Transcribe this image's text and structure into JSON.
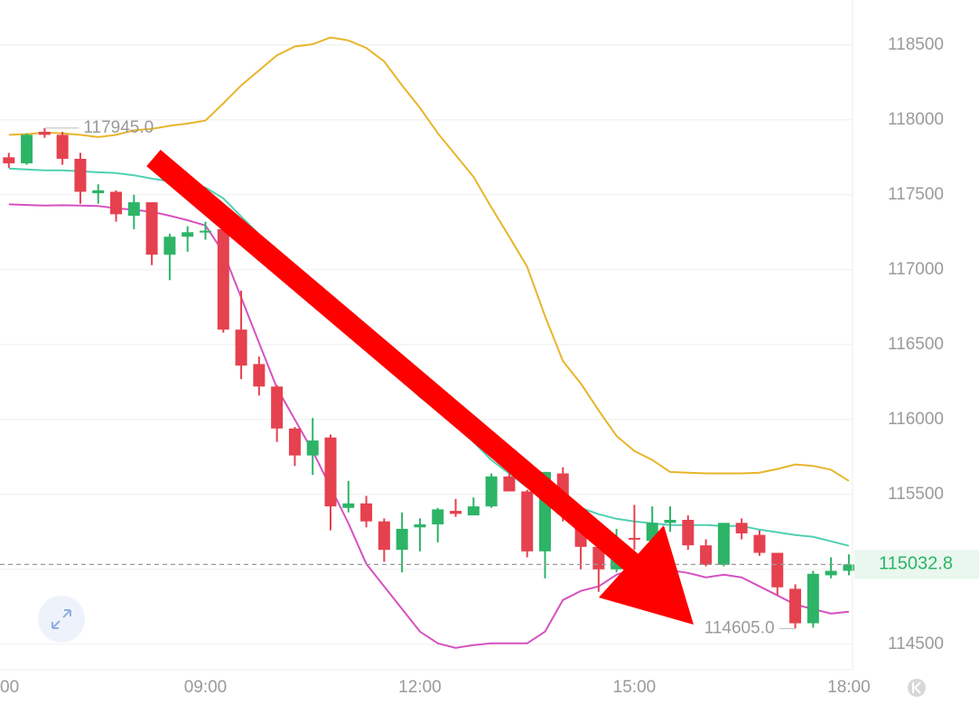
{
  "chart_data": {
    "type": "candlestick",
    "categories": [
      "00",
      null,
      null,
      null,
      null,
      null,
      null,
      null,
      null,
      null,
      null,
      null,
      "09:00",
      null,
      null,
      null,
      null,
      null,
      null,
      null,
      null,
      null,
      null,
      null,
      "12:00",
      null,
      null,
      null,
      null,
      null,
      null,
      null,
      null,
      null,
      null,
      null,
      "15:00",
      null,
      null,
      null,
      null,
      null,
      null,
      null,
      null,
      null,
      null,
      null,
      "18:00"
    ],
    "open": [
      null,
      117750,
      117710,
      117920,
      117900,
      117740,
      117510,
      117520,
      117360,
      117450,
      117100,
      117220,
      117250,
      117270,
      116600,
      116370,
      116220,
      115940,
      115760,
      115880,
      115410,
      115440,
      115320,
      115130,
      115280,
      115300,
      115390,
      115360,
      115420,
      115620,
      115520,
      115120,
      115640,
      115380,
      115150,
      115000,
      115210,
      115190,
      115310,
      115330,
      115160,
      115030,
      115310,
      115230,
      115110,
      114870,
      114640,
      114960,
      114990
    ],
    "high": [
      null,
      117780,
      117910,
      117945,
      117920,
      117780,
      117570,
      117530,
      117500,
      117450,
      117240,
      117290,
      117320,
      117300,
      116860,
      116420,
      116230,
      115950,
      116010,
      115900,
      115590,
      115490,
      115340,
      115380,
      115340,
      115410,
      115470,
      115480,
      115640,
      115640,
      115530,
      115650,
      115680,
      115400,
      115200,
      115270,
      115430,
      115420,
      115420,
      115360,
      115200,
      115300,
      115340,
      115260,
      115110,
      114900,
      114990,
      115080,
      115100
    ],
    "low": [
      null,
      117680,
      117700,
      117880,
      117700,
      117440,
      117440,
      117320,
      117270,
      117030,
      116930,
      117120,
      117200,
      116580,
      116270,
      116160,
      115850,
      115690,
      115630,
      115260,
      115380,
      115280,
      115050,
      114980,
      115120,
      115180,
      115350,
      115360,
      115410,
      115520,
      115080,
      114940,
      115320,
      115000,
      114850,
      114980,
      115130,
      115120,
      115250,
      115130,
      115020,
      115020,
      115200,
      115090,
      114830,
      114605,
      114610,
      114940,
      114960
    ],
    "close": [
      null,
      117710,
      117900,
      117900,
      117740,
      117520,
      117530,
      117370,
      117450,
      117100,
      117220,
      117250,
      117260,
      116600,
      116360,
      116220,
      115940,
      115760,
      115860,
      115420,
      115440,
      115320,
      115130,
      115270,
      115300,
      115400,
      115370,
      115420,
      115620,
      115520,
      115120,
      115650,
      115380,
      115150,
      115000,
      115190,
      115200,
      115310,
      115330,
      115160,
      115030,
      115310,
      115240,
      115110,
      114880,
      114640,
      114970,
      114990,
      115032.8
    ],
    "up_color": "#2db467",
    "down_color": "#e5414f",
    "lines": [
      {
        "color": "#e8b52a",
        "values": [
          null,
          117900,
          117905,
          117915,
          117910,
          117900,
          117885,
          117900,
          117930,
          117940,
          117960,
          117975,
          117995,
          118110,
          118230,
          118330,
          118430,
          118490,
          118505,
          118550,
          118530,
          118480,
          118390,
          118230,
          118080,
          117910,
          117765,
          117620,
          117415,
          117220,
          117020,
          116690,
          116390,
          116240,
          116060,
          115890,
          115790,
          115730,
          115650,
          115645,
          115640,
          115640,
          115640,
          115645,
          115670,
          115700,
          115690,
          115665,
          115590
        ]
      },
      {
        "color": "#4fd0b2",
        "values": [
          null,
          117675,
          117669,
          117663,
          117663,
          117657,
          117650,
          117645,
          117630,
          117608,
          117590,
          117578,
          117548,
          117476,
          117355,
          117235,
          117084,
          116946,
          116813,
          116705,
          116602,
          116494,
          116392,
          116271,
          116151,
          116060,
          115970,
          115850,
          115729,
          115639,
          115548,
          115500,
          115458,
          115410,
          115368,
          115337,
          115319,
          115307,
          115295,
          115295,
          115295,
          115289,
          115289,
          115265,
          115247,
          115229,
          115217,
          115187,
          115157
        ]
      },
      {
        "color": "#d552c0",
        "values": [
          null,
          117436,
          117432,
          117428,
          117430,
          117428,
          117425,
          117410,
          117400,
          117386,
          117360,
          117330,
          117295,
          117115,
          116813,
          116512,
          116211,
          116000,
          115789,
          115548,
          115307,
          115036,
          114886,
          114735,
          114584,
          114506,
          114476,
          114494,
          114506,
          114506,
          114506,
          114584,
          114795,
          114856,
          114886,
          114964,
          115006,
          115006,
          114994,
          114976,
          114946,
          114964,
          114946,
          114886,
          114826,
          114765,
          114735,
          114705,
          114717
        ]
      }
    ],
    "ylim": [
      114330,
      118800
    ],
    "yticks": [
      114500,
      115000,
      115500,
      116000,
      116500,
      117000,
      117500,
      118000,
      118500
    ],
    "grid": true,
    "max_label": {
      "value": 117945,
      "label": "117945.0"
    },
    "min_label": {
      "value": 114605,
      "label": "114605.0"
    },
    "last_price": 115032.8
  }
}
